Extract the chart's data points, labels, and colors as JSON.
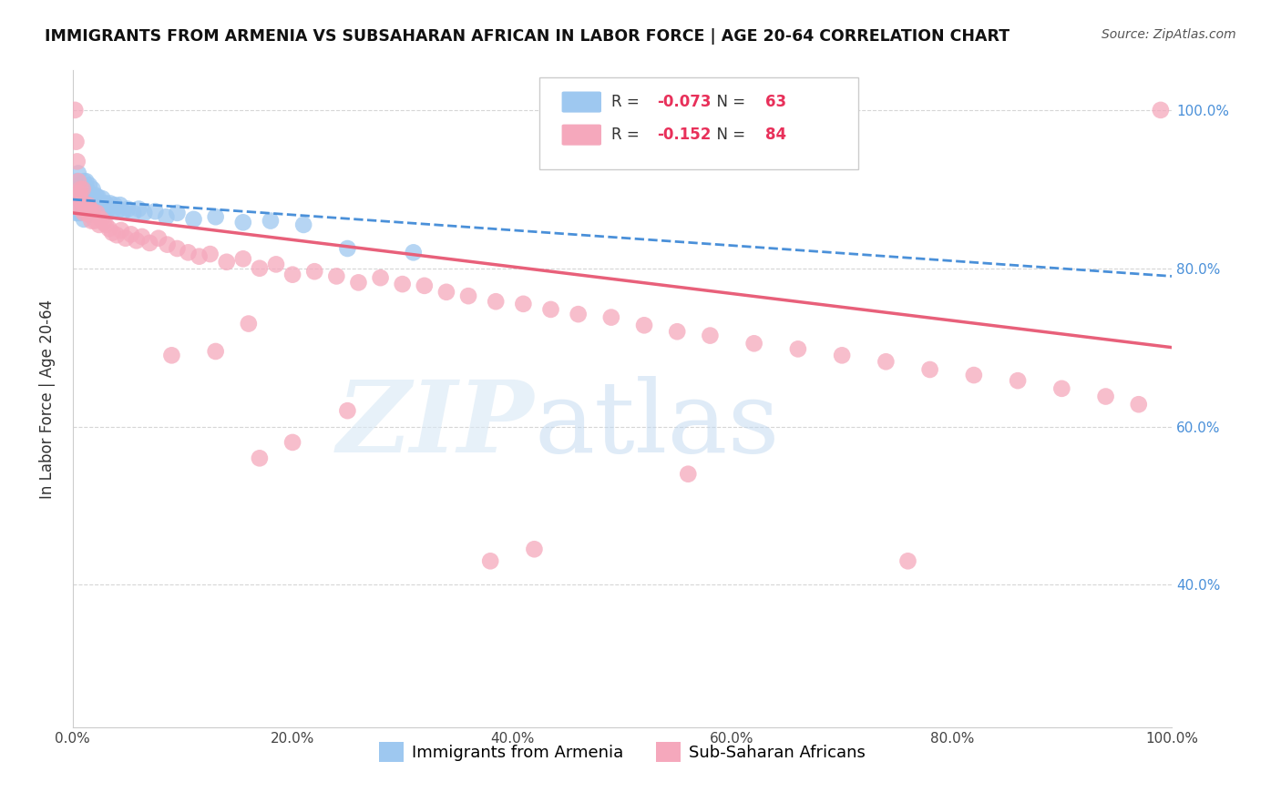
{
  "title": "IMMIGRANTS FROM ARMENIA VS SUBSAHARAN AFRICAN IN LABOR FORCE | AGE 20-64 CORRELATION CHART",
  "source": "Source: ZipAtlas.com",
  "ylabel": "In Labor Force | Age 20-64",
  "legend_r_blue": "-0.073",
  "legend_n_blue": "63",
  "legend_r_pink": "-0.152",
  "legend_n_pink": "84",
  "blue_color": "#9EC8F0",
  "pink_color": "#F5A8BC",
  "trendline_blue_color": "#4A90D9",
  "trendline_pink_color": "#E8607A",
  "xlim": [
    0.0,
    1.0
  ],
  "ylim": [
    0.22,
    1.05
  ],
  "xticks": [
    0.0,
    0.2,
    0.4,
    0.6,
    0.8,
    1.0
  ],
  "yticks": [
    0.4,
    0.6,
    0.8,
    1.0
  ],
  "xtick_labels": [
    "0.0%",
    "20.0%",
    "40.0%",
    "60.0%",
    "80.0%",
    "100.0%"
  ],
  "ytick_labels_right": [
    "40.0%",
    "60.0%",
    "80.0%",
    "100.0%"
  ],
  "blue_x": [
    0.002,
    0.003,
    0.003,
    0.004,
    0.004,
    0.005,
    0.005,
    0.005,
    0.006,
    0.006,
    0.007,
    0.007,
    0.008,
    0.008,
    0.009,
    0.009,
    0.01,
    0.01,
    0.01,
    0.01,
    0.011,
    0.012,
    0.012,
    0.013,
    0.013,
    0.014,
    0.015,
    0.015,
    0.016,
    0.017,
    0.018,
    0.018,
    0.019,
    0.02,
    0.021,
    0.022,
    0.023,
    0.025,
    0.026,
    0.027,
    0.028,
    0.03,
    0.032,
    0.034,
    0.036,
    0.038,
    0.04,
    0.043,
    0.046,
    0.05,
    0.055,
    0.06,
    0.065,
    0.075,
    0.085,
    0.095,
    0.11,
    0.13,
    0.155,
    0.18,
    0.21,
    0.25,
    0.31
  ],
  "blue_y": [
    0.88,
    0.9,
    0.87,
    0.91,
    0.88,
    0.92,
    0.895,
    0.87,
    0.905,
    0.882,
    0.895,
    0.87,
    0.905,
    0.88,
    0.895,
    0.87,
    0.91,
    0.895,
    0.878,
    0.862,
    0.895,
    0.91,
    0.882,
    0.9,
    0.875,
    0.892,
    0.905,
    0.878,
    0.892,
    0.875,
    0.9,
    0.875,
    0.89,
    0.882,
    0.892,
    0.875,
    0.89,
    0.882,
    0.875,
    0.888,
    0.872,
    0.882,
    0.875,
    0.882,
    0.872,
    0.88,
    0.872,
    0.88,
    0.872,
    0.875,
    0.87,
    0.875,
    0.87,
    0.872,
    0.865,
    0.87,
    0.862,
    0.865,
    0.858,
    0.86,
    0.855,
    0.825,
    0.82
  ],
  "pink_x": [
    0.002,
    0.003,
    0.004,
    0.004,
    0.005,
    0.005,
    0.006,
    0.007,
    0.007,
    0.008,
    0.009,
    0.01,
    0.01,
    0.011,
    0.012,
    0.013,
    0.014,
    0.015,
    0.016,
    0.017,
    0.018,
    0.02,
    0.022,
    0.024,
    0.026,
    0.028,
    0.03,
    0.033,
    0.036,
    0.04,
    0.044,
    0.048,
    0.053,
    0.058,
    0.063,
    0.07,
    0.078,
    0.086,
    0.095,
    0.105,
    0.115,
    0.125,
    0.14,
    0.155,
    0.17,
    0.185,
    0.2,
    0.22,
    0.24,
    0.26,
    0.28,
    0.3,
    0.32,
    0.34,
    0.36,
    0.385,
    0.41,
    0.435,
    0.46,
    0.49,
    0.52,
    0.55,
    0.58,
    0.62,
    0.66,
    0.7,
    0.74,
    0.78,
    0.82,
    0.86,
    0.9,
    0.94,
    0.97,
    0.99,
    0.16,
    0.09,
    0.13,
    0.2,
    0.17,
    0.25,
    0.38,
    0.42,
    0.56,
    0.76
  ],
  "pink_y": [
    1.0,
    0.96,
    0.935,
    0.89,
    0.91,
    0.88,
    0.895,
    0.9,
    0.875,
    0.885,
    0.9,
    0.88,
    0.87,
    0.88,
    0.875,
    0.87,
    0.88,
    0.868,
    0.875,
    0.86,
    0.872,
    0.86,
    0.87,
    0.855,
    0.862,
    0.858,
    0.855,
    0.85,
    0.845,
    0.842,
    0.848,
    0.838,
    0.843,
    0.835,
    0.84,
    0.832,
    0.838,
    0.83,
    0.825,
    0.82,
    0.815,
    0.818,
    0.808,
    0.812,
    0.8,
    0.805,
    0.792,
    0.796,
    0.79,
    0.782,
    0.788,
    0.78,
    0.778,
    0.77,
    0.765,
    0.758,
    0.755,
    0.748,
    0.742,
    0.738,
    0.728,
    0.72,
    0.715,
    0.705,
    0.698,
    0.69,
    0.682,
    0.672,
    0.665,
    0.658,
    0.648,
    0.638,
    0.628,
    1.0,
    0.73,
    0.69,
    0.695,
    0.58,
    0.56,
    0.62,
    0.43,
    0.445,
    0.54,
    0.43
  ],
  "blue_trend_x0": 0.0,
  "blue_trend_y0": 0.887,
  "blue_trend_x1": 1.0,
  "blue_trend_y1": 0.79,
  "pink_trend_x0": 0.0,
  "pink_trend_y0": 0.87,
  "pink_trend_x1": 1.0,
  "pink_trend_y1": 0.7
}
